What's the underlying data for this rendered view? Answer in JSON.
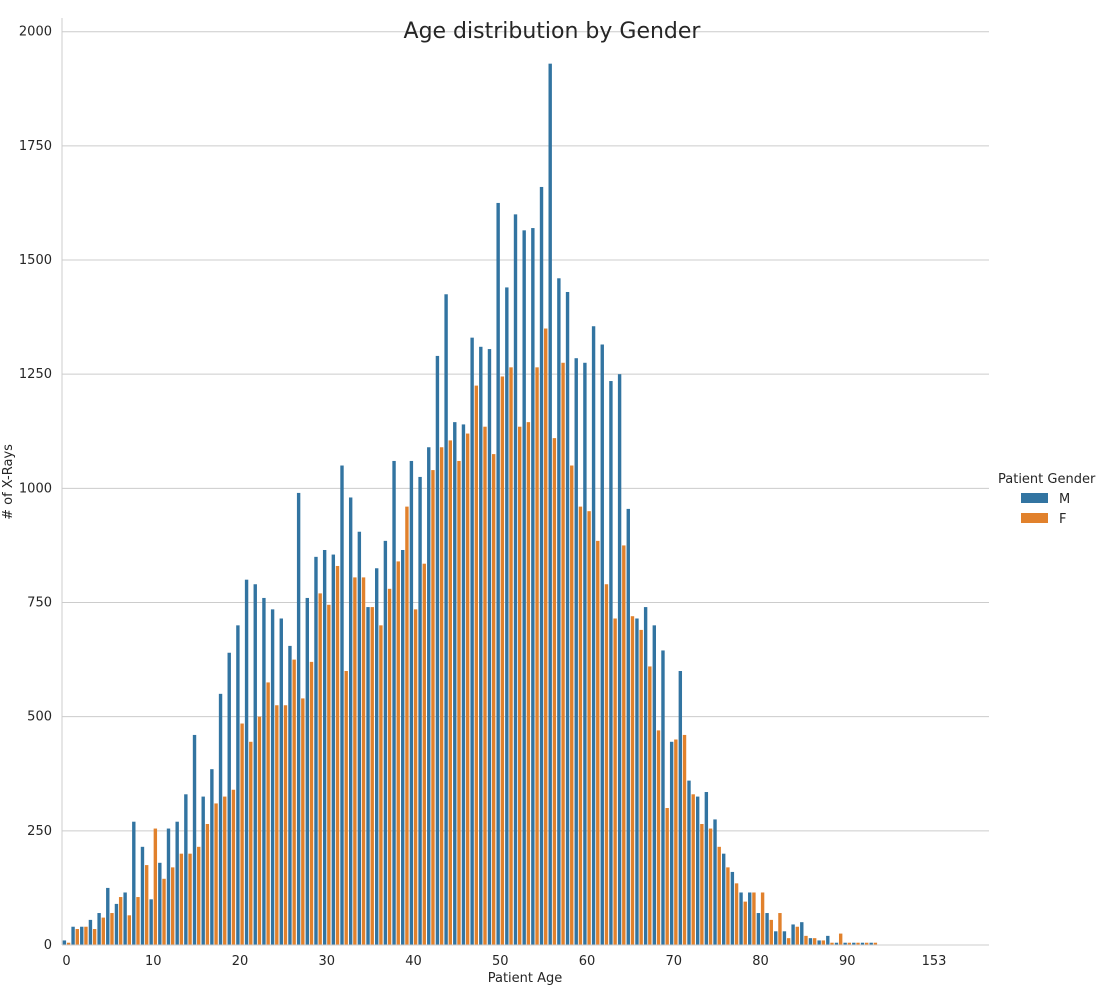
{
  "chart_data": {
    "type": "bar",
    "title": "Age distribution by Gender",
    "xlabel": "Patient Age",
    "ylabel": "# of X-Rays",
    "ylim": [
      0,
      2030
    ],
    "yticks": [
      0,
      250,
      500,
      750,
      1000,
      1250,
      1500,
      1750,
      2000
    ],
    "xtick_labels": [
      {
        "index": 0,
        "label": "0"
      },
      {
        "index": 10,
        "label": "10"
      },
      {
        "index": 20,
        "label": "20"
      },
      {
        "index": 30,
        "label": "30"
      },
      {
        "index": 40,
        "label": "40"
      },
      {
        "index": 50,
        "label": "50"
      },
      {
        "index": 60,
        "label": "60"
      },
      {
        "index": 70,
        "label": "70"
      },
      {
        "index": 80,
        "label": "80"
      },
      {
        "index": 90,
        "label": "90"
      },
      {
        "index": 100,
        "label": "153"
      }
    ],
    "grid": "horizontal",
    "legend_position": "right",
    "legend_title": "Patient Gender",
    "colors": {
      "M": "#3274a1",
      "F": "#e1812c"
    },
    "categories": [
      "0",
      "1",
      "2",
      "3",
      "4",
      "5",
      "6",
      "7",
      "8",
      "9",
      "10",
      "11",
      "12",
      "13",
      "14",
      "15",
      "16",
      "17",
      "18",
      "19",
      "20",
      "21",
      "22",
      "23",
      "24",
      "25",
      "26",
      "27",
      "28",
      "29",
      "30",
      "31",
      "32",
      "33",
      "34",
      "35",
      "36",
      "37",
      "38",
      "39",
      "40",
      "41",
      "42",
      "43",
      "44",
      "45",
      "46",
      "47",
      "48",
      "49",
      "50",
      "51",
      "52",
      "53",
      "54",
      "55",
      "56",
      "57",
      "58",
      "59",
      "60",
      "61",
      "62",
      "63",
      "64",
      "65",
      "66",
      "67",
      "68",
      "69",
      "70",
      "71",
      "72",
      "73",
      "74",
      "75",
      "76",
      "77",
      "78",
      "79",
      "80",
      "81",
      "82",
      "83",
      "84",
      "85",
      "86",
      "87",
      "88",
      "89",
      "90",
      "91",
      "92",
      "93",
      "94",
      "95",
      "96",
      "97",
      "98",
      "99",
      "153"
    ],
    "series": [
      {
        "name": "M",
        "values": [
          10,
          40,
          40,
          55,
          70,
          125,
          90,
          115,
          270,
          215,
          100,
          180,
          255,
          270,
          330,
          460,
          325,
          385,
          550,
          640,
          700,
          800,
          790,
          760,
          735,
          715,
          655,
          990,
          760,
          850,
          865,
          855,
          1050,
          980,
          905,
          740,
          825,
          885,
          1060,
          865,
          1060,
          1025,
          1090,
          1290,
          1425,
          1145,
          1140,
          1330,
          1310,
          1305,
          1625,
          1440,
          1600,
          1565,
          1570,
          1660,
          1930,
          1460,
          1430,
          1285,
          1275,
          1355,
          1315,
          1235,
          1250,
          955,
          715,
          740,
          700,
          645,
          445,
          600,
          360,
          325,
          335,
          275,
          200,
          160,
          115,
          115,
          70,
          70,
          30,
          30,
          45,
          50,
          15,
          10,
          20,
          5,
          5,
          5,
          5,
          5,
          0,
          0,
          0,
          0,
          0,
          0,
          0
        ]
      },
      {
        "name": "F",
        "values": [
          5,
          35,
          40,
          35,
          60,
          70,
          105,
          65,
          105,
          175,
          255,
          145,
          170,
          200,
          200,
          215,
          265,
          310,
          325,
          340,
          485,
          445,
          500,
          575,
          525,
          525,
          625,
          540,
          620,
          770,
          745,
          830,
          600,
          805,
          805,
          740,
          700,
          780,
          840,
          960,
          735,
          835,
          1040,
          1090,
          1105,
          1060,
          1120,
          1225,
          1135,
          1075,
          1245,
          1265,
          1135,
          1145,
          1265,
          1350,
          1110,
          1275,
          1050,
          960,
          950,
          885,
          790,
          715,
          875,
          720,
          690,
          610,
          470,
          300,
          450,
          460,
          330,
          265,
          255,
          215,
          170,
          135,
          95,
          115,
          115,
          55,
          70,
          15,
          40,
          20,
          15,
          10,
          5,
          25,
          5,
          5,
          5,
          5,
          0,
          0,
          0,
          0,
          0,
          0,
          0
        ]
      }
    ]
  }
}
